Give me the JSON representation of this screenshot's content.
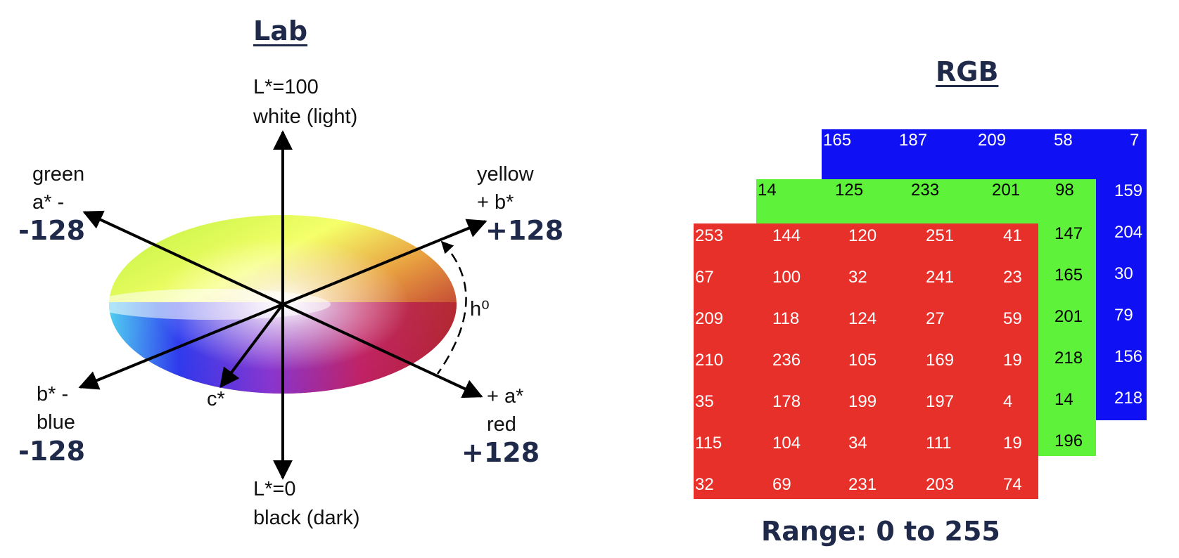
{
  "lab": {
    "title": "Lab",
    "l_top": "L*=100",
    "l_top_desc": "white (light)",
    "green": "green",
    "a_minus": "a* -",
    "a_minus_value": "-128",
    "yellow": "yellow",
    "b_plus": "+ b*",
    "b_plus_value": "+128",
    "hue": "h⁰",
    "b_minus": "b* -",
    "blue": "blue",
    "b_minus_value": "-128",
    "chroma": "c*",
    "a_plus": "+ a*",
    "red": "red",
    "a_plus_value": "+128",
    "l_bottom": "L*=0",
    "l_bottom_desc": "black (dark)"
  },
  "rgb": {
    "title": "RGB",
    "range": "Range: 0 to 255",
    "colors": {
      "red": "#e8302a",
      "green": "#5ef23a",
      "blue": "#1010f5"
    },
    "blue_top_row": [
      "165",
      "187",
      "209",
      "58",
      "7"
    ],
    "blue_right_col": [
      "159",
      "204",
      "30",
      "79",
      "156",
      "218"
    ],
    "green_top_row": [
      "14",
      "125",
      "233",
      "201",
      "98"
    ],
    "green_right_col": [
      "147",
      "165",
      "201",
      "218",
      "14",
      "196"
    ],
    "red_grid": [
      [
        "253",
        "144",
        "120",
        "251",
        "41"
      ],
      [
        "67",
        "100",
        "32",
        "241",
        "23"
      ],
      [
        "209",
        "118",
        "124",
        "27",
        "59"
      ],
      [
        "210",
        "236",
        "105",
        "169",
        "19"
      ],
      [
        "35",
        "178",
        "199",
        "197",
        "4"
      ],
      [
        "115",
        "104",
        "34",
        "111",
        "19"
      ],
      [
        "32",
        "69",
        "231",
        "203",
        "74"
      ]
    ]
  }
}
